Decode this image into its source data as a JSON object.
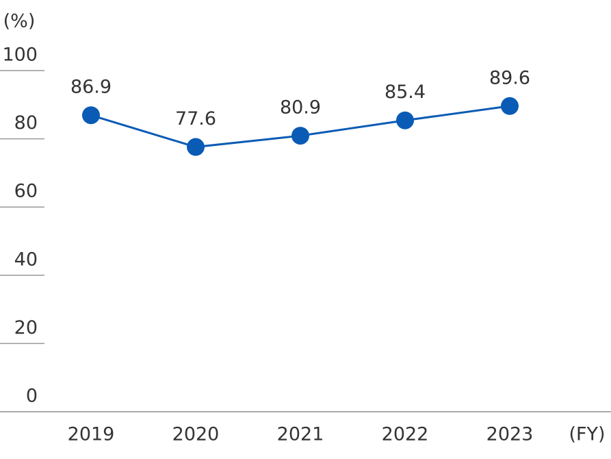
{
  "chart_data": {
    "type": "line",
    "y_label": "(%)",
    "x_label": "(FY)",
    "categories": [
      "2019",
      "2020",
      "2021",
      "2022",
      "2023"
    ],
    "series": [
      {
        "name": null,
        "color": "#0a5bb5",
        "values": [
          86.9,
          77.6,
          80.9,
          85.4,
          89.6
        ]
      }
    ],
    "ylim": [
      0,
      100
    ],
    "yticks": [
      0,
      20,
      40,
      60,
      80,
      100
    ]
  }
}
